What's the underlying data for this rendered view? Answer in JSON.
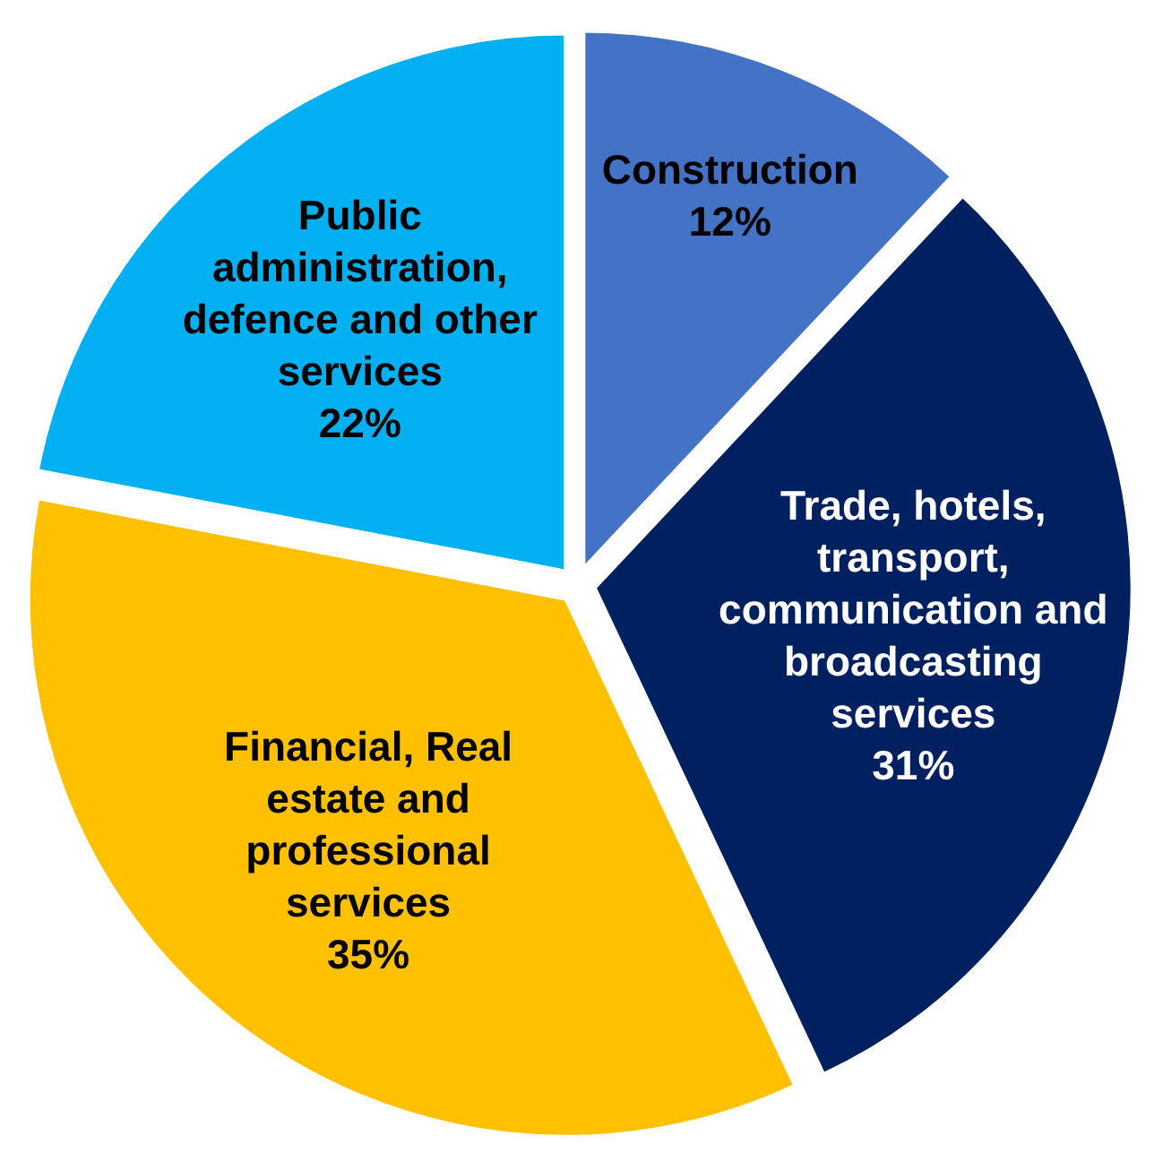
{
  "chart_data": {
    "type": "pie",
    "categories": [
      "Construction",
      "Trade, hotels, transport, communication and broadcasting services",
      "Financial, Real estate and professional services",
      "Public administration, defence and other services"
    ],
    "values": [
      12,
      31,
      35,
      22
    ],
    "colors": [
      "#4472c4",
      "#002060",
      "#ffc000",
      "#00b0f0"
    ],
    "value_labels": [
      "12%",
      "31%",
      "35%",
      "22%"
    ]
  }
}
